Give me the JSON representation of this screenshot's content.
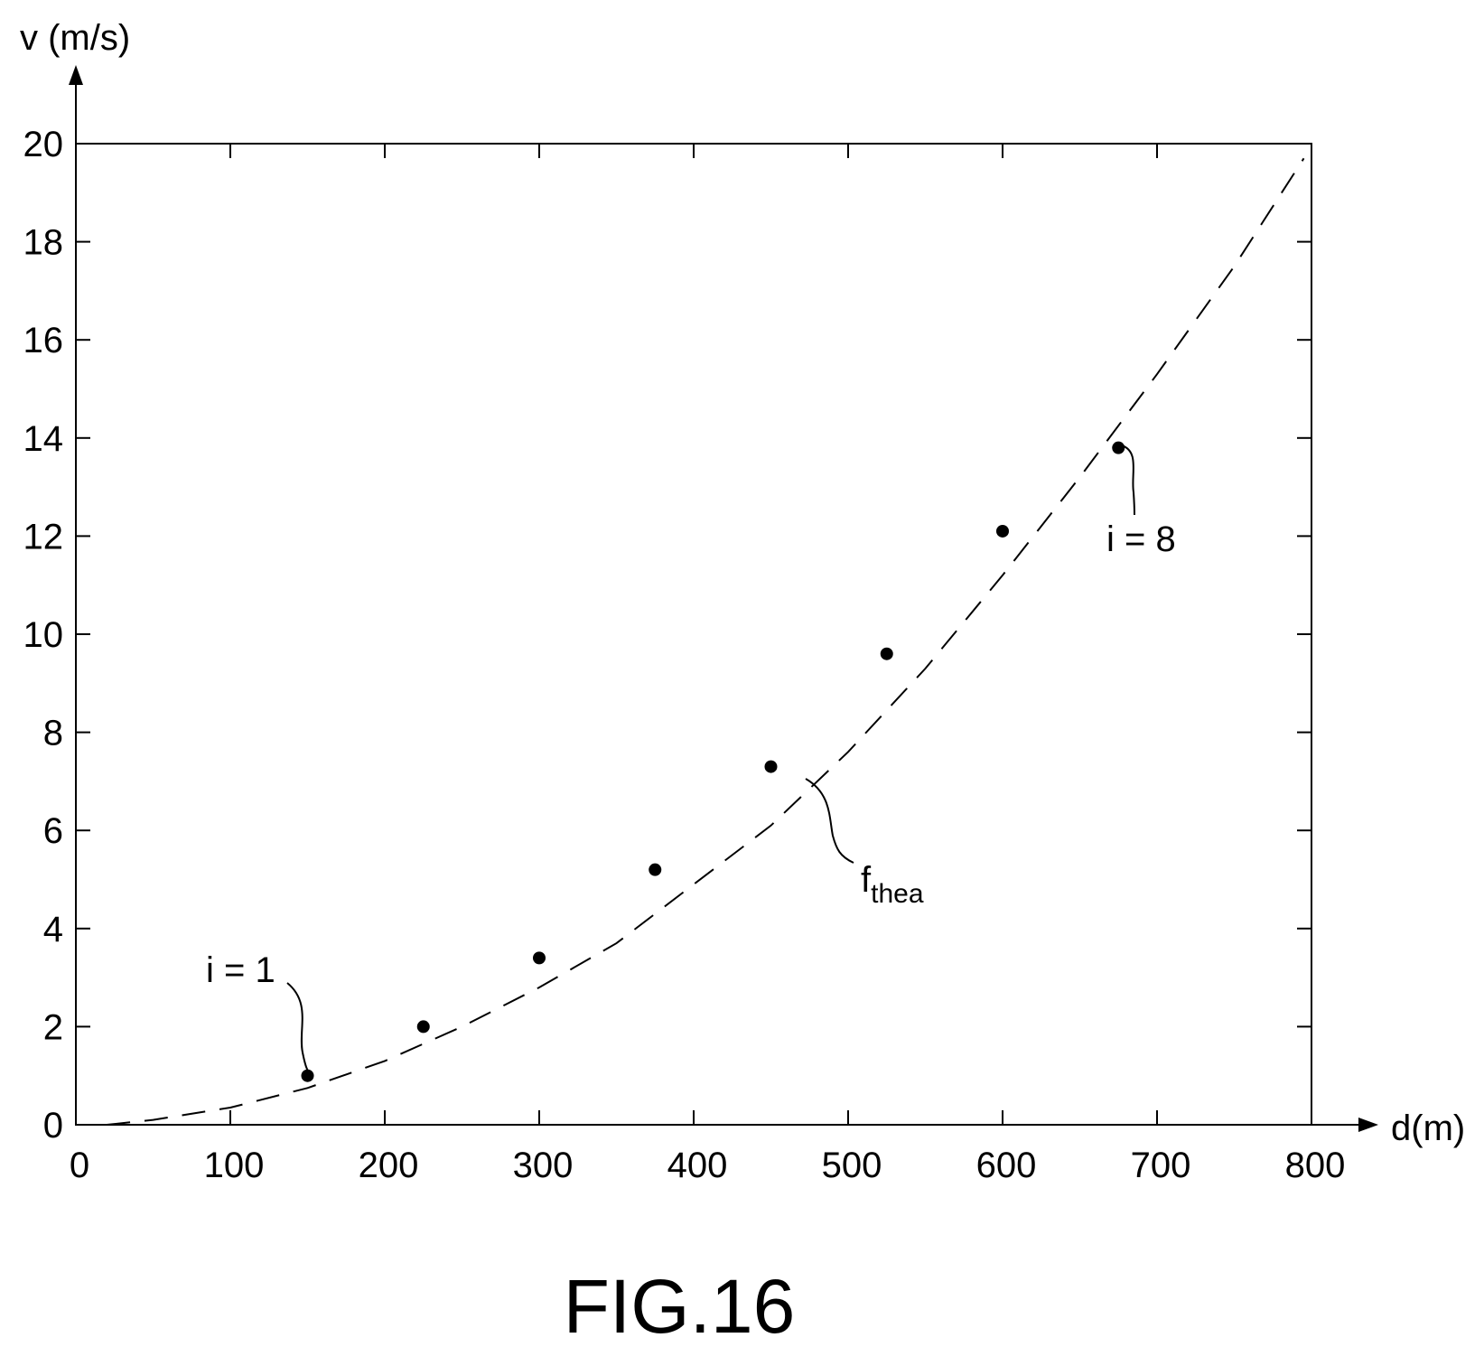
{
  "figure_caption": "FIG.16",
  "chart_data": {
    "type": "scatter",
    "xlabel": "d(m)",
    "ylabel": "v (m/s)",
    "xlim": [
      0,
      800
    ],
    "ylim": [
      0,
      20
    ],
    "x_ticks": [
      0,
      100,
      200,
      300,
      400,
      500,
      600,
      700,
      800
    ],
    "y_ticks": [
      0,
      2,
      4,
      6,
      8,
      10,
      12,
      14,
      16,
      18,
      20
    ],
    "grid": false,
    "series": [
      {
        "style": "points",
        "color": "#000000",
        "x": [
          150,
          225,
          300,
          375,
          450,
          525,
          600,
          675
        ],
        "y": [
          1.0,
          2.0,
          3.4,
          5.2,
          7.3,
          9.6,
          12.1,
          13.8
        ]
      },
      {
        "name": "f",
        "name_subscript": "thea",
        "style": "dashed-line",
        "color": "#000000",
        "x": [
          20,
          50,
          100,
          150,
          200,
          250,
          300,
          350,
          400,
          450,
          500,
          550,
          600,
          650,
          700,
          750,
          795
        ],
        "y": [
          0.0,
          0.1,
          0.35,
          0.75,
          1.3,
          2.0,
          2.8,
          3.7,
          4.9,
          6.1,
          7.6,
          9.3,
          11.2,
          13.2,
          15.3,
          17.5,
          19.7
        ]
      }
    ],
    "annotations": [
      {
        "text": "i = 1",
        "point_index": 0
      },
      {
        "text": "i = 8",
        "point_index": 7
      }
    ]
  }
}
